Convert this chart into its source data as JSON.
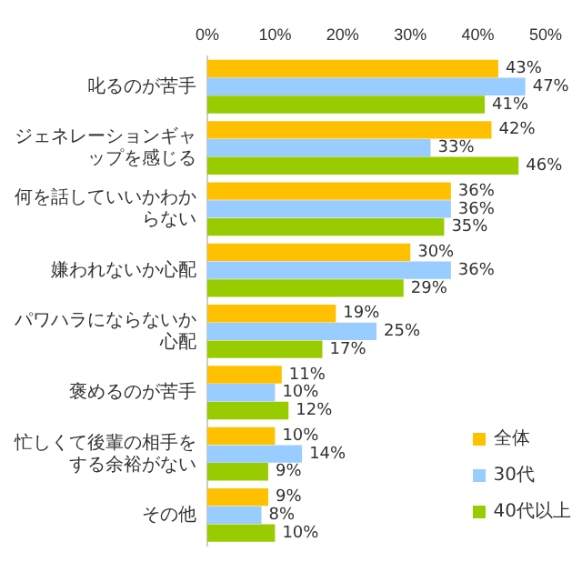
{
  "chart_data": {
    "type": "bar",
    "orientation": "horizontal",
    "categories": [
      "叱るのが苦手",
      "ジェネレーションギャップを感じる",
      "何を話していいかわからない",
      "嫌われないか心配",
      "パワハラにならないか心配",
      "褒めるのが苦手",
      "忙しくて後輩の相手をする余裕がない",
      "その他"
    ],
    "series": [
      {
        "name": "全体",
        "color": "#ffc000",
        "values": [
          43,
          42,
          36,
          30,
          19,
          11,
          10,
          9
        ],
        "value_labels": [
          "43%",
          "42%",
          "36%",
          "30%",
          "19%",
          "11%",
          "10%",
          "9%"
        ]
      },
      {
        "name": "30代",
        "color": "#99ccff",
        "values": [
          47,
          33,
          36,
          36,
          25,
          10,
          14,
          8
        ],
        "value_labels": [
          "47%",
          "33%",
          "36%",
          "36%",
          "25%",
          "10%",
          "14%",
          "8%"
        ]
      },
      {
        "name": "40代以上",
        "color": "#99cc00",
        "values": [
          41,
          46,
          35,
          29,
          17,
          12,
          9,
          10
        ],
        "value_labels": [
          "41%",
          "46%",
          "35%",
          "29%",
          "17%",
          "12%",
          "9%",
          "10%"
        ]
      }
    ],
    "xlim": [
      0,
      50
    ],
    "xticks": [
      {
        "value": 0,
        "label": "0%"
      },
      {
        "value": 10,
        "label": "10%"
      },
      {
        "value": 20,
        "label": "20%"
      },
      {
        "value": 30,
        "label": "30%"
      },
      {
        "value": 40,
        "label": "40%"
      },
      {
        "value": 50,
        "label": "50%"
      }
    ],
    "grid": false,
    "legend": "bottom right"
  }
}
